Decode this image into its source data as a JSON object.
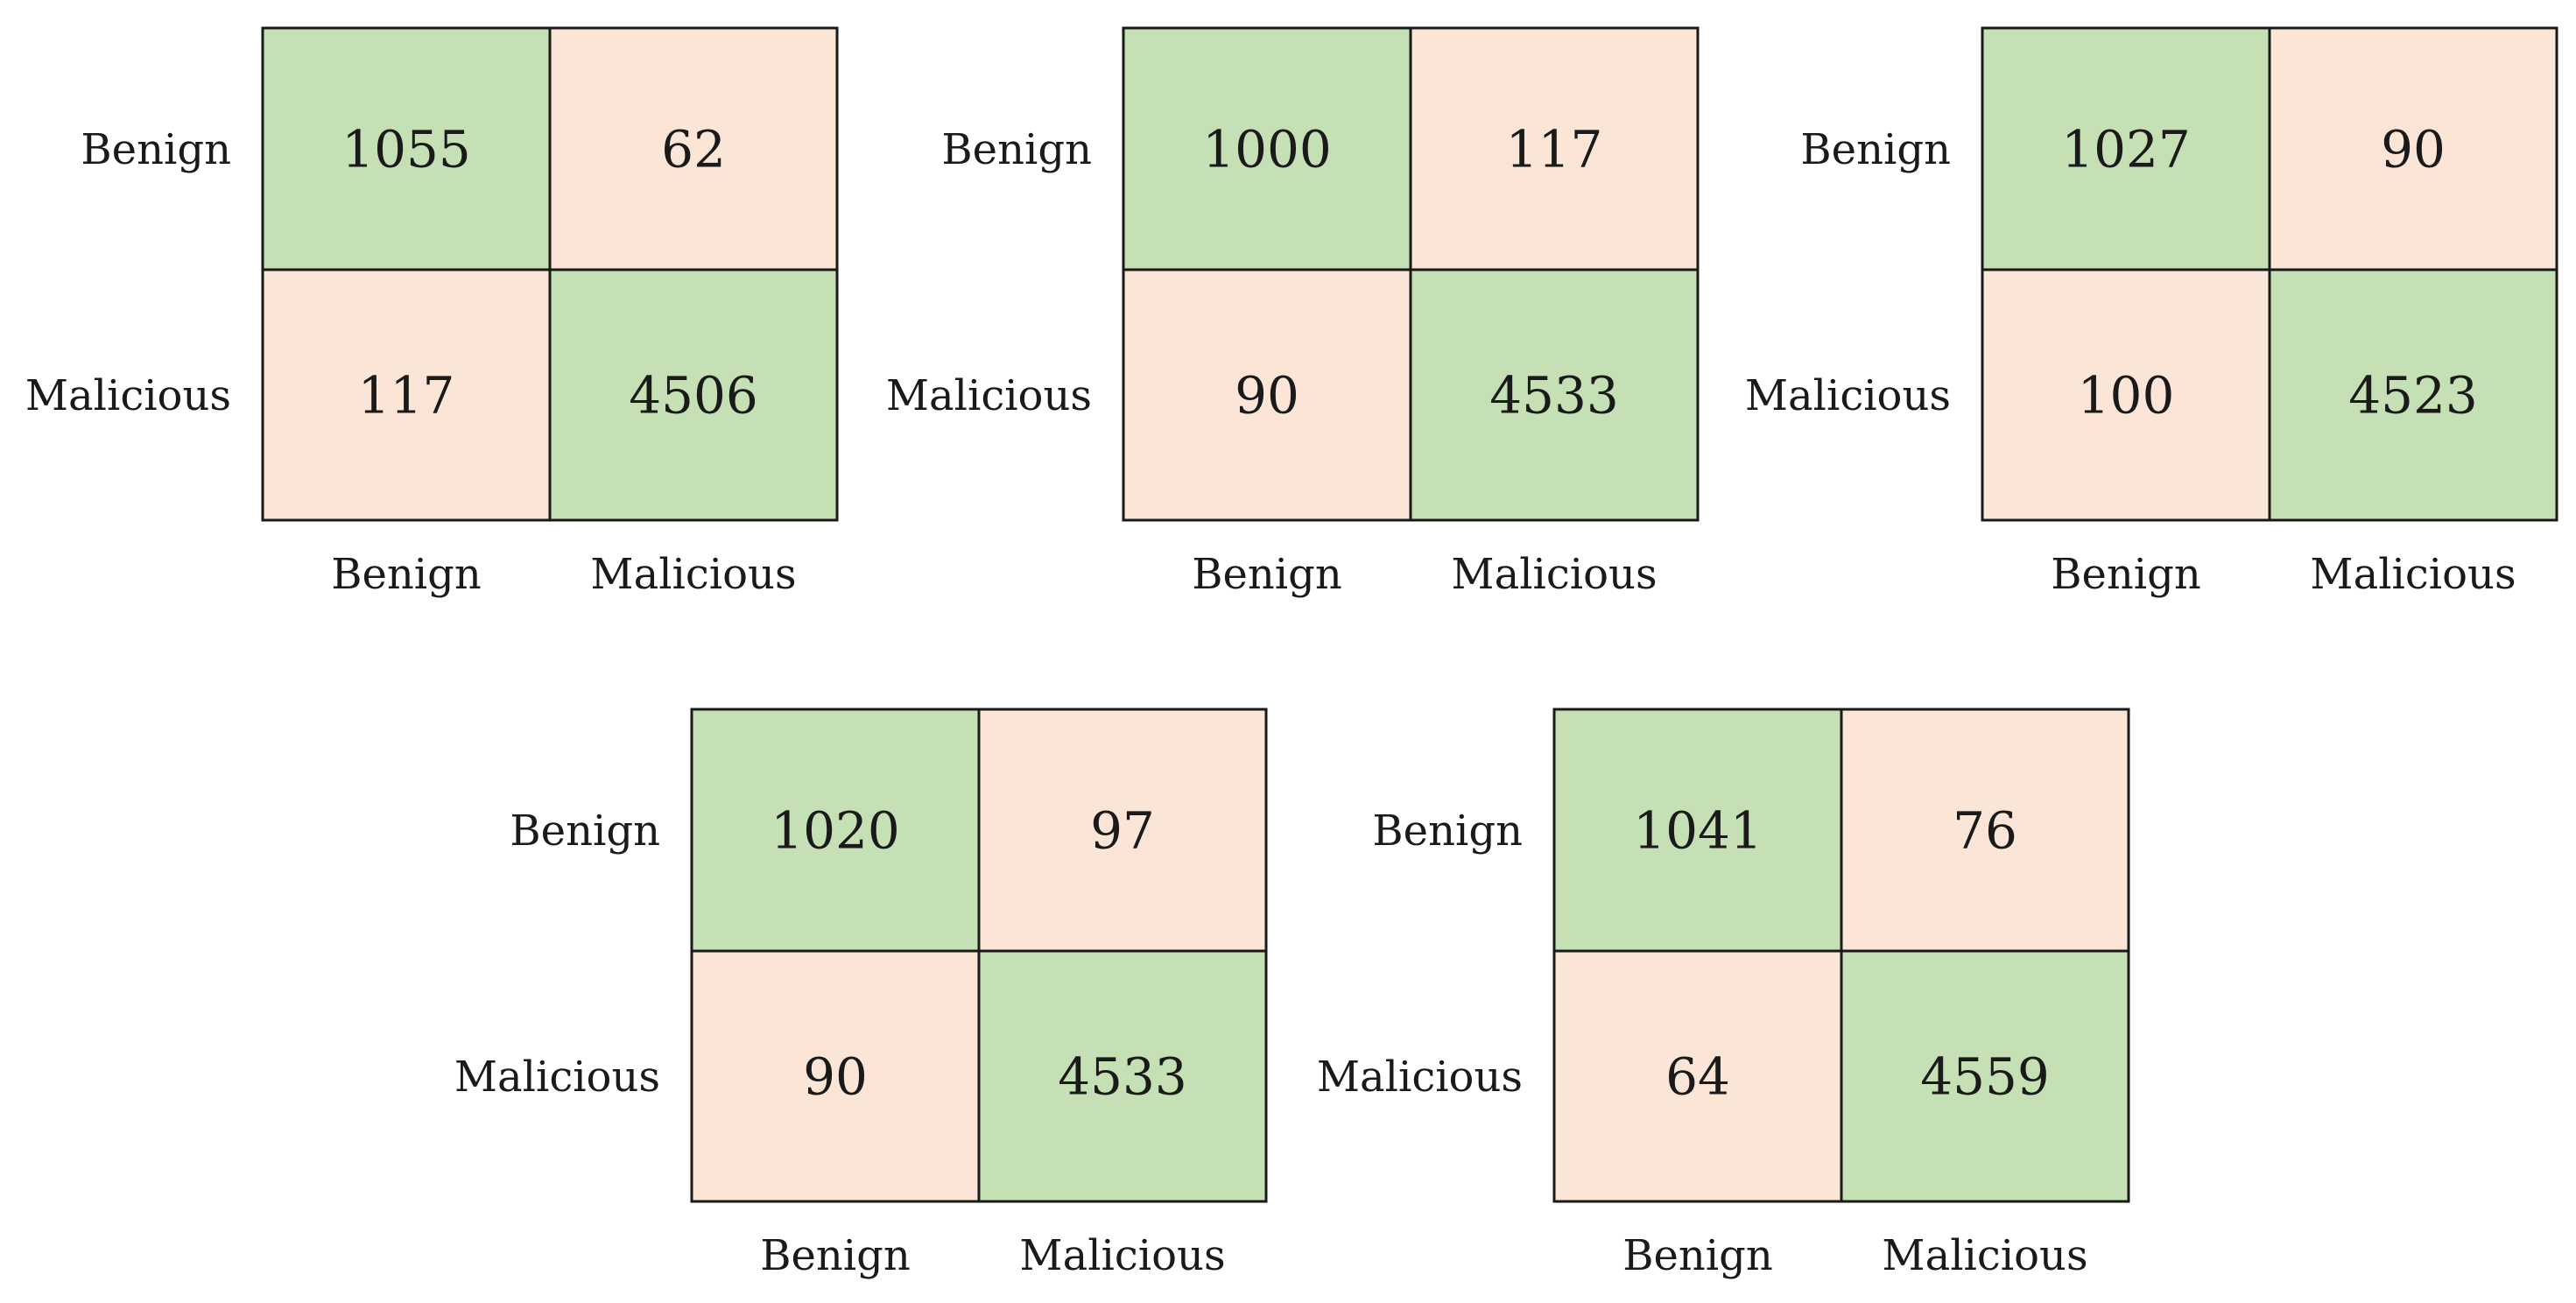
{
  "colors": {
    "correct": "#c5e0b4",
    "error": "#fbe5d6",
    "border": "#1a1a1a",
    "text": "#1a1a1a"
  },
  "chart_data": [
    {
      "type": "heatmap",
      "row_labels": [
        "Benign",
        "Malicious"
      ],
      "col_labels": [
        "Benign",
        "Malicious"
      ],
      "matrix": [
        [
          1055,
          62
        ],
        [
          117,
          4506
        ]
      ]
    },
    {
      "type": "heatmap",
      "row_labels": [
        "Benign",
        "Malicious"
      ],
      "col_labels": [
        "Benign",
        "Malicious"
      ],
      "matrix": [
        [
          1000,
          117
        ],
        [
          90,
          4533
        ]
      ]
    },
    {
      "type": "heatmap",
      "row_labels": [
        "Benign",
        "Malicious"
      ],
      "col_labels": [
        "Benign",
        "Malicious"
      ],
      "matrix": [
        [
          1027,
          90
        ],
        [
          100,
          4523
        ]
      ]
    },
    {
      "type": "heatmap",
      "row_labels": [
        "Benign",
        "Malicious"
      ],
      "col_labels": [
        "Benign",
        "Malicious"
      ],
      "matrix": [
        [
          1020,
          97
        ],
        [
          90,
          4533
        ]
      ]
    },
    {
      "type": "heatmap",
      "row_labels": [
        "Benign",
        "Malicious"
      ],
      "col_labels": [
        "Benign",
        "Malicious"
      ],
      "matrix": [
        [
          1041,
          76
        ],
        [
          64,
          4559
        ]
      ]
    }
  ]
}
